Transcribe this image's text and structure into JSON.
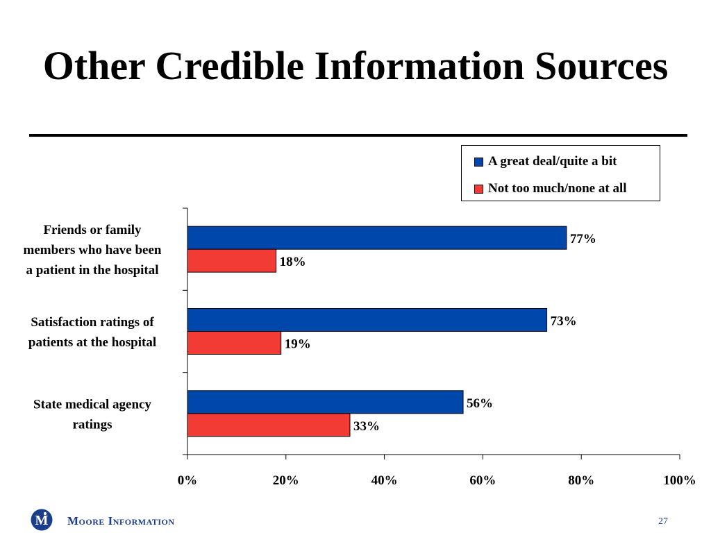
{
  "slide": {
    "title": "Other Credible Information Sources",
    "footer_brand": "Moore Information",
    "page_number": "27"
  },
  "colors": {
    "series_0": "#0047ab",
    "series_1": "#f23b35",
    "brand": "#1a3d8c"
  },
  "chart_data": {
    "type": "bar",
    "orientation": "horizontal",
    "categories": [
      [
        "Friends or family",
        "members who have been",
        "a patient in the hospital"
      ],
      [
        "Satisfaction ratings of",
        "patients at the hospital"
      ],
      [
        "State medical agency",
        "ratings"
      ]
    ],
    "series": [
      {
        "name": "A great deal/quite a bit",
        "values": [
          77,
          73,
          56
        ],
        "labels": [
          "77%",
          "73%",
          "56%"
        ]
      },
      {
        "name": "Not too much/none at all",
        "values": [
          18,
          19,
          33
        ],
        "labels": [
          "18%",
          "19%",
          "33%"
        ]
      }
    ],
    "xlim": [
      0,
      100
    ],
    "x_ticks": [
      0,
      20,
      40,
      60,
      80,
      100
    ],
    "x_tick_labels": [
      "0%",
      "20%",
      "40%",
      "60%",
      "80%",
      "100%"
    ],
    "grid": false,
    "legend_position": "top-right"
  }
}
